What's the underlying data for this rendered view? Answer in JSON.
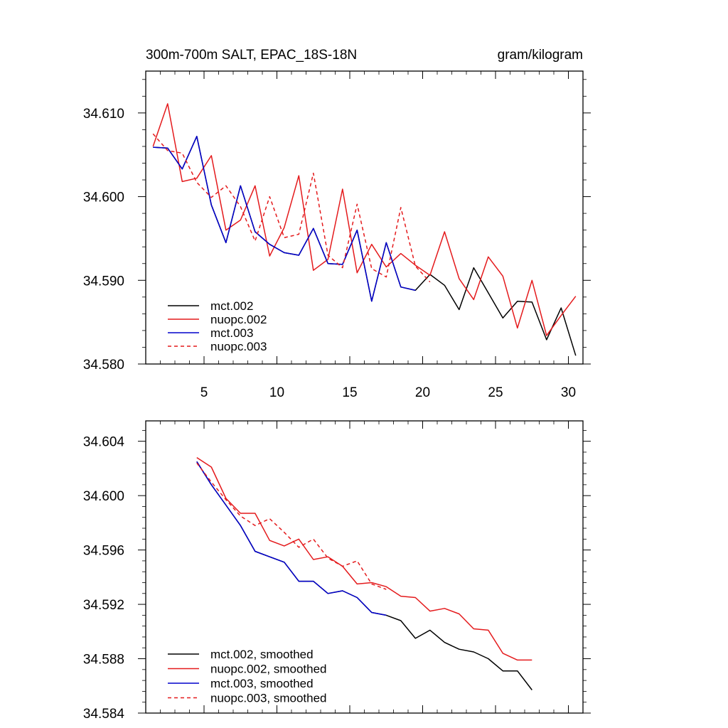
{
  "chart_data": [
    {
      "type": "line",
      "title_left": "300m-700m SALT, EPAC_18S-18N",
      "title_right": "gram/kilogram",
      "xlim": [
        1,
        31
      ],
      "ylim": [
        34.58,
        34.615
      ],
      "xticks": [
        5,
        10,
        15,
        20,
        25,
        30
      ],
      "xtick_labels": [
        "5",
        "10",
        "15",
        "20",
        "25",
        "30"
      ],
      "yticks": [
        34.58,
        34.59,
        34.6,
        34.61
      ],
      "ytick_labels": [
        "34.580",
        "34.590",
        "34.600",
        "34.610"
      ],
      "legend_position": "bottom-left",
      "series": [
        {
          "name": "mct.002",
          "color": "#000000",
          "dash": false,
          "x": [
            1.5,
            2.5,
            3.5,
            4.5,
            5.5,
            6.5,
            7.5,
            8.5,
            9.5,
            10.5,
            11.5,
            12.5,
            13.5,
            14.5,
            15.5,
            16.5,
            17.5,
            18.5,
            19.5,
            20.5,
            21.5,
            22.5,
            23.5,
            24.5,
            25.5,
            26.5,
            27.5,
            28.5,
            29.5,
            30.5
          ],
          "y": [
            34.6059,
            34.6058,
            34.6033,
            34.6072,
            34.599,
            34.5945,
            34.6013,
            34.5958,
            34.5943,
            34.5933,
            34.593,
            34.5962,
            34.592,
            34.5919,
            34.596,
            34.5875,
            34.5945,
            34.5892,
            34.5888,
            34.5907,
            34.5894,
            34.5865,
            34.5915,
            34.5885,
            34.5855,
            34.5875,
            34.5874,
            34.5829,
            34.5867,
            34.581
          ]
        },
        {
          "name": "nuopc.002",
          "color": "#e41a1c",
          "dash": false,
          "x": [
            1.5,
            2.5,
            3.5,
            4.5,
            5.5,
            6.5,
            7.5,
            8.5,
            9.5,
            10.5,
            11.5,
            12.5,
            13.5,
            14.5,
            15.5,
            16.5,
            17.5,
            18.5,
            19.5,
            20.5,
            21.5,
            22.5,
            23.5,
            24.5,
            25.5,
            26.5,
            27.5,
            28.5,
            29.5,
            30.5
          ],
          "y": [
            34.606,
            34.6111,
            34.6018,
            34.6022,
            34.6049,
            34.596,
            34.5972,
            34.6013,
            34.5929,
            34.5963,
            34.6025,
            34.5912,
            34.5925,
            34.6009,
            34.5909,
            34.5943,
            34.5916,
            34.5932,
            34.5918,
            34.5906,
            34.5958,
            34.5902,
            34.5877,
            34.5928,
            34.5905,
            34.5843,
            34.59,
            34.5834,
            34.5858,
            34.5881
          ]
        },
        {
          "name": "mct.003",
          "color": "#0000cc",
          "dash": false,
          "x": [
            1.5,
            2.5,
            3.5,
            4.5,
            5.5,
            6.5,
            7.5,
            8.5,
            9.5,
            10.5,
            11.5,
            12.5,
            13.5,
            14.5,
            15.5,
            16.5,
            17.5,
            18.5,
            19.5
          ],
          "y": [
            34.6059,
            34.6058,
            34.6033,
            34.6072,
            34.599,
            34.5945,
            34.6013,
            34.5958,
            34.5943,
            34.5933,
            34.593,
            34.5962,
            34.592,
            34.5919,
            34.596,
            34.5875,
            34.5945,
            34.5892,
            34.5888
          ]
        },
        {
          "name": "nuopc.003",
          "color": "#e41a1c",
          "dash": true,
          "x": [
            1.5,
            2.5,
            3.5,
            4.5,
            5.5,
            6.5,
            7.5,
            8.5,
            9.5,
            10.5,
            11.5,
            12.5,
            13.5,
            14.5,
            15.5,
            16.5,
            17.5,
            18.5,
            19.5,
            20.5
          ],
          "y": [
            34.6075,
            34.6055,
            34.6052,
            34.6017,
            34.5999,
            34.6013,
            34.5988,
            34.5947,
            34.6,
            34.5951,
            34.5955,
            34.6028,
            34.593,
            34.5915,
            34.5991,
            34.5914,
            34.5904,
            34.5987,
            34.5917,
            34.5898
          ]
        }
      ]
    },
    {
      "type": "line",
      "xlim": [
        1,
        31
      ],
      "ylim": [
        34.584,
        34.6055
      ],
      "xticks": [
        5,
        10,
        15,
        20,
        25,
        30
      ],
      "yticks": [
        34.584,
        34.588,
        34.592,
        34.596,
        34.6,
        34.604
      ],
      "ytick_labels": [
        "34.584",
        "34.588",
        "34.592",
        "34.596",
        "34.600",
        "34.604"
      ],
      "legend_position": "bottom-left",
      "series": [
        {
          "name": "mct.002, smoothed",
          "color": "#000000",
          "dash": false,
          "x": [
            4.5,
            5.5,
            6.5,
            7.5,
            8.5,
            9.5,
            10.5,
            11.5,
            12.5,
            13.5,
            14.5,
            15.5,
            16.5,
            17.5,
            18.5,
            19.5,
            20.5,
            21.5,
            22.5,
            23.5,
            24.5,
            25.5,
            26.5,
            27.5
          ],
          "y": [
            34.6025,
            34.6008,
            34.5993,
            34.5978,
            34.5959,
            34.5955,
            34.5951,
            34.5937,
            34.5937,
            34.5928,
            34.593,
            34.5925,
            34.5914,
            34.5912,
            34.5908,
            34.5895,
            34.5901,
            34.5892,
            34.5887,
            34.5885,
            34.588,
            34.5871,
            34.5871,
            34.5857
          ]
        },
        {
          "name": "nuopc.002, smoothed",
          "color": "#e41a1c",
          "dash": false,
          "x": [
            4.5,
            5.5,
            6.5,
            7.5,
            8.5,
            9.5,
            10.5,
            11.5,
            12.5,
            13.5,
            14.5,
            15.5,
            16.5,
            17.5,
            18.5,
            19.5,
            20.5,
            21.5,
            22.5,
            23.5,
            24.5,
            25.5,
            26.5,
            27.5
          ],
          "y": [
            34.6028,
            34.6021,
            34.5998,
            34.5987,
            34.5987,
            34.5967,
            34.5963,
            34.5968,
            34.5953,
            34.5955,
            34.5948,
            34.5935,
            34.5936,
            34.5933,
            34.5926,
            34.5925,
            34.5915,
            34.5917,
            34.5913,
            34.5902,
            34.5901,
            34.5884,
            34.5879,
            34.5879
          ]
        },
        {
          "name": "mct.003, smoothed",
          "color": "#0000cc",
          "dash": false,
          "x": [
            4.5,
            5.5,
            6.5,
            7.5,
            8.5,
            9.5,
            10.5,
            11.5,
            12.5,
            13.5,
            14.5,
            15.5,
            16.5,
            17.5
          ],
          "y": [
            34.6025,
            34.6008,
            34.5993,
            34.5978,
            34.5959,
            34.5955,
            34.5951,
            34.5937,
            34.5937,
            34.5928,
            34.593,
            34.5925,
            34.5914,
            34.5912
          ]
        },
        {
          "name": "nuopc.003, smoothed",
          "color": "#e41a1c",
          "dash": true,
          "x": [
            4.5,
            5.5,
            6.5,
            7.5,
            8.5,
            9.5,
            10.5,
            11.5,
            12.5,
            13.5,
            14.5,
            15.5,
            16.5,
            17.5
          ],
          "y": [
            34.6024,
            34.601,
            34.5997,
            34.5985,
            34.5978,
            34.5983,
            34.5973,
            34.5962,
            34.5968,
            34.5954,
            34.5948,
            34.5952,
            34.5935,
            34.5931
          ]
        }
      ]
    }
  ]
}
